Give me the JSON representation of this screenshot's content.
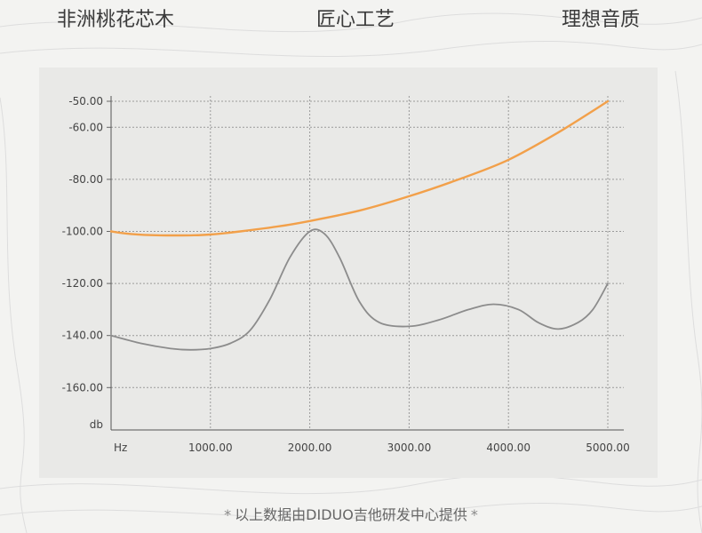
{
  "header": {
    "left": "非洲桃花芯木",
    "center": "匠心工艺",
    "right": "理想音质"
  },
  "footer": {
    "star_left": "*",
    "text": "以上数据由DIDUO吉他研发中心提供",
    "star_right": "*"
  },
  "chart_data": {
    "type": "line",
    "xlabel": "Hz",
    "ylabel": "db",
    "xlim": [
      0,
      5000
    ],
    "ylim": [
      -180,
      -50
    ],
    "y_ticks": [
      -50,
      -60,
      -80,
      -100,
      -120,
      -140,
      -160
    ],
    "y_tick_labels": [
      "-50.00",
      "-60.00",
      "-80.00",
      "-100.00",
      "-120.00",
      "-140.00",
      "-160.00"
    ],
    "x_ticks": [
      1000,
      2000,
      3000,
      4000,
      5000
    ],
    "x_tick_labels": [
      "1000.00",
      "2000.00",
      "3000.00",
      "4000.00",
      "5000.00"
    ],
    "grid": true,
    "series": [
      {
        "color": "#f2a04a",
        "x": [
          0,
          200,
          500,
          800,
          1000,
          1300,
          1700,
          2000,
          2500,
          3000,
          3500,
          4000,
          4500,
          5000
        ],
        "y": [
          -100,
          -101,
          -101.5,
          -101.5,
          -101.2,
          -100,
          -98,
          -96,
          -92,
          -86.5,
          -80,
          -72.5,
          -62,
          -50
        ]
      },
      {
        "color": "#8c8c8c",
        "x": [
          0,
          300,
          600,
          800,
          1000,
          1200,
          1400,
          1600,
          1800,
          2000,
          2150,
          2300,
          2500,
          2700,
          3000,
          3300,
          3600,
          3850,
          4100,
          4300,
          4500,
          4700,
          4850,
          5000
        ],
        "y": [
          -140,
          -143,
          -145,
          -145.5,
          -145,
          -143,
          -138,
          -126,
          -110,
          -100,
          -101,
          -110,
          -127,
          -135,
          -136.5,
          -134,
          -130,
          -128,
          -130,
          -135,
          -137.5,
          -135,
          -130,
          -120
        ]
      }
    ]
  }
}
